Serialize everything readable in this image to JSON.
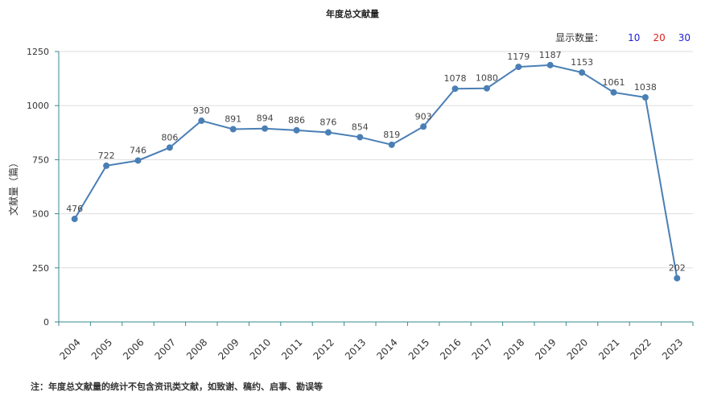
{
  "title": "年度总文献量",
  "display_count": {
    "label": "显示数量：",
    "options": [
      {
        "value": "10",
        "color": "#1f1fd6"
      },
      {
        "value": "20",
        "color": "#e0201a"
      },
      {
        "value": "30",
        "color": "#1f1fd6"
      }
    ]
  },
  "note": "注：年度总文献量的统计不包含资讯类文献，如致谢、稿约、启事、勘误等",
  "chart_data": {
    "type": "line",
    "title": "年度总文献量",
    "ylabel": "文献量（篇）",
    "xlabel": "",
    "ylim": [
      0,
      1250
    ],
    "yticks": [
      0,
      250,
      500,
      750,
      1000,
      1250
    ],
    "grid": true,
    "line_color": "#4a7fb5",
    "categories": [
      "2004",
      "2005",
      "2006",
      "2007",
      "2008",
      "2009",
      "2010",
      "2011",
      "2012",
      "2013",
      "2014",
      "2015",
      "2016",
      "2017",
      "2018",
      "2019",
      "2020",
      "2021",
      "2022",
      "2023"
    ],
    "series": [
      {
        "values": [
          476,
          722,
          746,
          806,
          930,
          891,
          894,
          886,
          876,
          854,
          819,
          903,
          1078,
          1080,
          1179,
          1187,
          1153,
          1061,
          1038,
          202
        ]
      }
    ]
  }
}
